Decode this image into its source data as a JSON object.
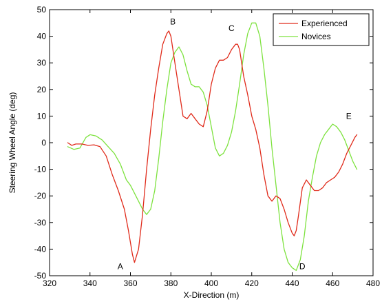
{
  "chart_data": {
    "type": "line",
    "title": "",
    "xlabel": "X-Direction (m)",
    "ylabel": "Steering Wheel Angle (deg)",
    "xlim": [
      320,
      480
    ],
    "ylim": [
      -50,
      50
    ],
    "xticks": [
      320,
      340,
      360,
      380,
      400,
      420,
      440,
      460,
      480
    ],
    "yticks": [
      -50,
      -40,
      -30,
      -20,
      -10,
      0,
      10,
      20,
      30,
      40,
      50
    ],
    "grid": false,
    "legend_position": "top-right",
    "series": [
      {
        "name": "Experienced",
        "color": "#e02a1a",
        "x": [
          329,
          331,
          333,
          336,
          339,
          342,
          345,
          348,
          351,
          354,
          357,
          359,
          361,
          362,
          364,
          366,
          368,
          370,
          372,
          374,
          376,
          378,
          379,
          380,
          382,
          384,
          386,
          388,
          390,
          392,
          394,
          396,
          398,
          400,
          402,
          404,
          406,
          408,
          410,
          412,
          413,
          414,
          416,
          418,
          420,
          422,
          424,
          426,
          428,
          430,
          432,
          434,
          436,
          438,
          440,
          441,
          442,
          443,
          445,
          447,
          449,
          451,
          453,
          455,
          457,
          459,
          461,
          463,
          465,
          467,
          469,
          471,
          472
        ],
        "y": [
          0,
          -1,
          -0.5,
          -0.5,
          -1,
          -0.8,
          -1.5,
          -5,
          -12,
          -18,
          -25,
          -33,
          -42,
          -45,
          -40,
          -27,
          -10,
          5,
          18,
          28,
          37,
          41,
          42,
          40,
          30,
          20,
          10,
          9,
          11,
          9,
          7,
          6,
          12,
          22,
          28,
          31,
          31,
          32,
          35,
          37,
          37,
          35,
          25,
          18,
          10,
          5,
          -2,
          -12,
          -20,
          -22,
          -20,
          -21,
          -25,
          -30,
          -34,
          -35,
          -33,
          -28,
          -17,
          -14,
          -16,
          -18,
          -18,
          -17,
          -15,
          -14,
          -13,
          -11,
          -8,
          -4,
          -1,
          2,
          3
        ]
      },
      {
        "name": "Novices",
        "color": "#7de23e",
        "x": [
          329,
          332,
          335,
          338,
          340,
          343,
          346,
          349,
          352,
          355,
          358,
          360,
          362,
          364,
          366,
          368,
          370,
          372,
          374,
          376,
          378,
          380,
          382,
          384,
          386,
          388,
          390,
          392,
          394,
          396,
          398,
          400,
          402,
          404,
          406,
          408,
          410,
          412,
          414,
          416,
          418,
          420,
          422,
          424,
          426,
          428,
          430,
          432,
          434,
          436,
          438,
          440,
          442,
          444,
          446,
          448,
          450,
          452,
          454,
          456,
          458,
          460,
          462,
          464,
          466,
          468,
          470,
          472
        ],
        "y": [
          -1.5,
          -2.5,
          -2,
          2,
          3,
          2.5,
          1,
          -1.5,
          -4,
          -8,
          -14,
          -16,
          -19,
          -22,
          -25,
          -27,
          -25,
          -18,
          -6,
          8,
          20,
          30,
          34,
          36,
          33,
          27,
          22,
          21,
          21,
          19,
          14,
          6,
          -2,
          -5,
          -4,
          -1,
          4,
          12,
          22,
          33,
          41,
          45,
          45,
          40,
          28,
          14,
          -2,
          -16,
          -30,
          -40,
          -45,
          -47,
          -48,
          -44,
          -35,
          -22,
          -13,
          -5,
          0,
          3,
          5,
          7,
          6,
          4,
          1,
          -3,
          -7,
          -10
        ]
      }
    ],
    "annotations": [
      {
        "text": "A",
        "x": 355,
        "y": -46.5
      },
      {
        "text": "B",
        "x": 381,
        "y": 45.5
      },
      {
        "text": "C",
        "x": 410,
        "y": 43
      },
      {
        "text": "D",
        "x": 445,
        "y": -46.5
      },
      {
        "text": "E",
        "x": 468,
        "y": 10
      }
    ]
  }
}
